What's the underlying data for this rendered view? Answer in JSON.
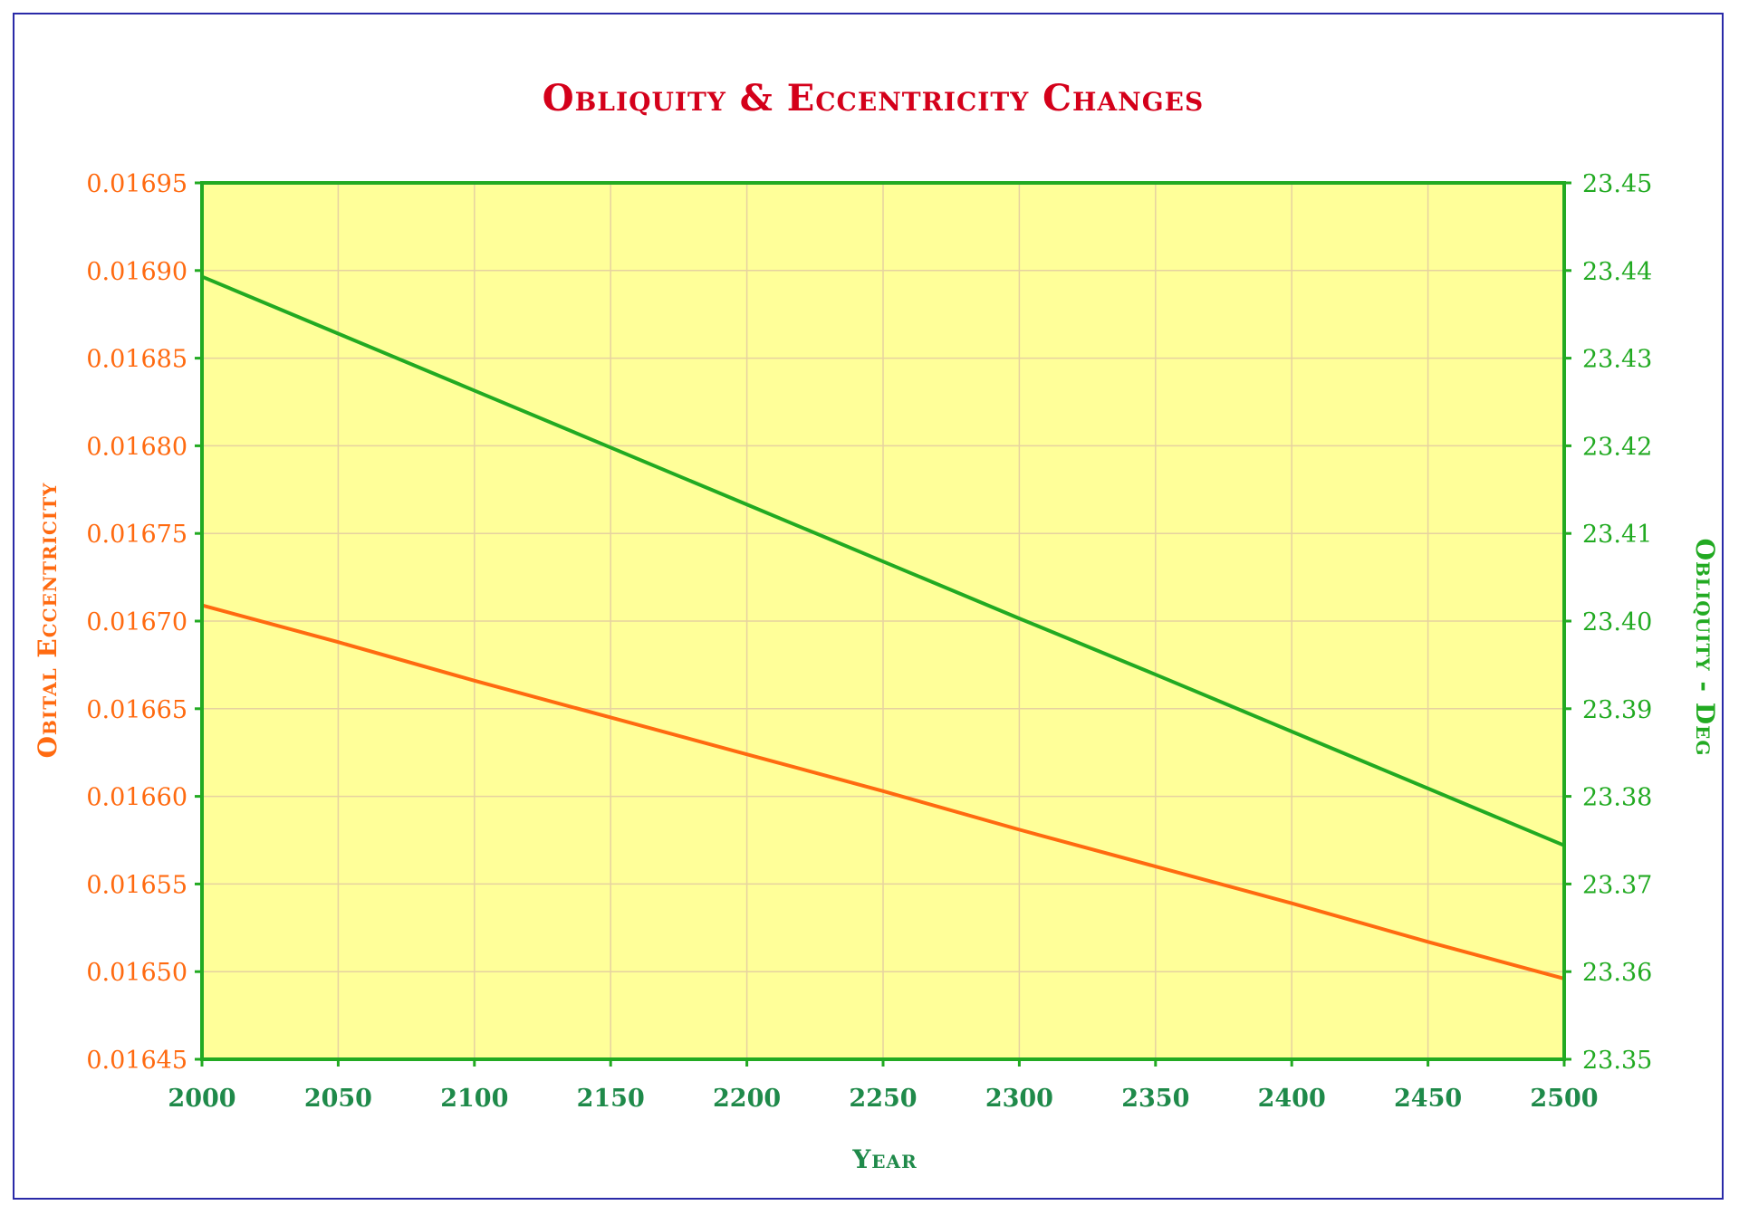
{
  "chart_data": {
    "type": "line",
    "title": "Obliquity & Eccentricity Changes",
    "xlabel": "Year",
    "ylabel_left": "Obital Eccentricity",
    "ylabel_right": "Obliquity - Deg",
    "x": [
      2000,
      2050,
      2100,
      2150,
      2200,
      2250,
      2300,
      2350,
      2400,
      2450,
      2500
    ],
    "xlim": [
      2000,
      2500
    ],
    "x_ticks": [
      "2000",
      "2050",
      "2100",
      "2150",
      "2200",
      "2250",
      "2300",
      "2350",
      "2400",
      "2450",
      "2500"
    ],
    "ylim_left": [
      0.01645,
      0.01695
    ],
    "y_ticks_left": [
      "0.01645",
      "0.01650",
      "0.01655",
      "0.01660",
      "0.01665",
      "0.01670",
      "0.01675",
      "0.01680",
      "0.01685",
      "0.01690",
      "0.01695"
    ],
    "ylim_right": [
      23.35,
      23.45
    ],
    "y_ticks_right": [
      "23.35",
      "23.36",
      "23.37",
      "23.38",
      "23.39",
      "23.40",
      "23.41",
      "23.42",
      "23.43",
      "23.44",
      "23.45"
    ],
    "grid": true,
    "series": [
      {
        "axis": "left",
        "color": "#ff6a10",
        "values": [
          0.016709,
          0.016688,
          0.016666,
          0.016645,
          0.016624,
          0.016603,
          0.016581,
          0.01656,
          0.016539,
          0.016517,
          0.016496
        ]
      },
      {
        "axis": "right",
        "color": "#22aa22",
        "values": [
          23.4393,
          23.4328,
          23.4263,
          23.4198,
          23.4133,
          23.4068,
          23.4003,
          23.3939,
          23.3874,
          23.3809,
          23.3744
        ]
      }
    ]
  },
  "colors": {
    "title": "#d4001a",
    "left_axis": "#ff6a10",
    "right_axis": "#22aa22",
    "x_axis_text": "#1f8a4a",
    "plot_bg": "#ffff99",
    "plot_border": "#22aa22",
    "grid": "#e6d2a0",
    "frame": "#2a2aa8"
  }
}
